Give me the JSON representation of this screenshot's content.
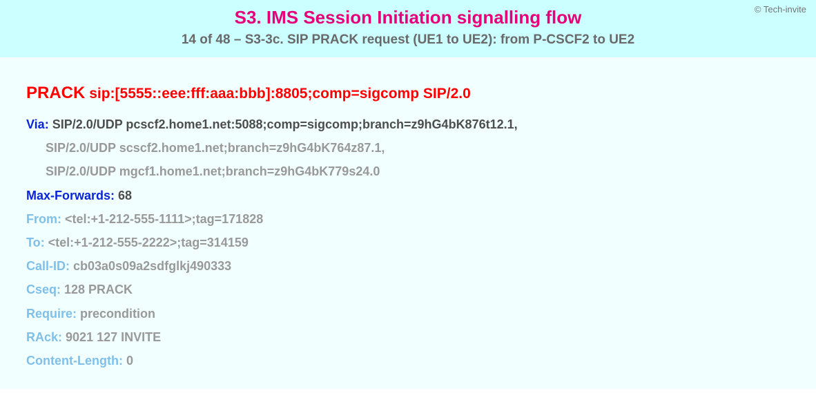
{
  "copyright": "© Tech-invite",
  "title": "S3. IMS Session Initiation signalling flow",
  "subtitle": "14 of 48 – S3-3c. SIP PRACK request (UE1 to UE2): from P-CSCF2 to UE2",
  "request": {
    "method": "PRACK",
    "uri": "sip:[5555::eee:fff:aaa:bbb]:8805;comp=sigcomp SIP/2.0"
  },
  "headers": [
    {
      "name": "Via",
      "value": "SIP/2.0/UDP pcscf2.home1.net:5088;comp=sigcomp;branch=z9hG4bK876t12.1,",
      "emph": "dark",
      "cont": [
        "SIP/2.0/UDP scscf2.home1.net;branch=z9hG4bK764z87.1,",
        "SIP/2.0/UDP mgcf1.home1.net;branch=z9hG4bK779s24.0"
      ]
    },
    {
      "name": "Max-Forwards",
      "value": "68",
      "emph": "dark"
    },
    {
      "name": "From",
      "value": "<tel:+1-212-555-1111>;tag=171828",
      "emph": "light"
    },
    {
      "name": "To",
      "value": "<tel:+1-212-555-2222>;tag=314159",
      "emph": "light"
    },
    {
      "name": "Call-ID",
      "value": "cb03a0s09a2sdfglkj490333",
      "emph": "light"
    },
    {
      "name": "Cseq",
      "value": "128 PRACK",
      "emph": "light"
    },
    {
      "name": "Require",
      "value": "precondition",
      "emph": "light"
    },
    {
      "name": "RAck",
      "value": "9021 127 INVITE",
      "emph": "light"
    },
    {
      "name": "Content-Length",
      "value": "0",
      "emph": "light"
    }
  ],
  "colors": {
    "header_bg": "#ccffff",
    "body_bg": "#f2ffff",
    "title": "#e6007a",
    "subtitle": "#696969",
    "request": "#ff0000",
    "hname_dark": "#0b25d6",
    "hval_dark": "#4d4d4d",
    "hname_light": "#80c0e8",
    "hval_light": "#999999"
  }
}
